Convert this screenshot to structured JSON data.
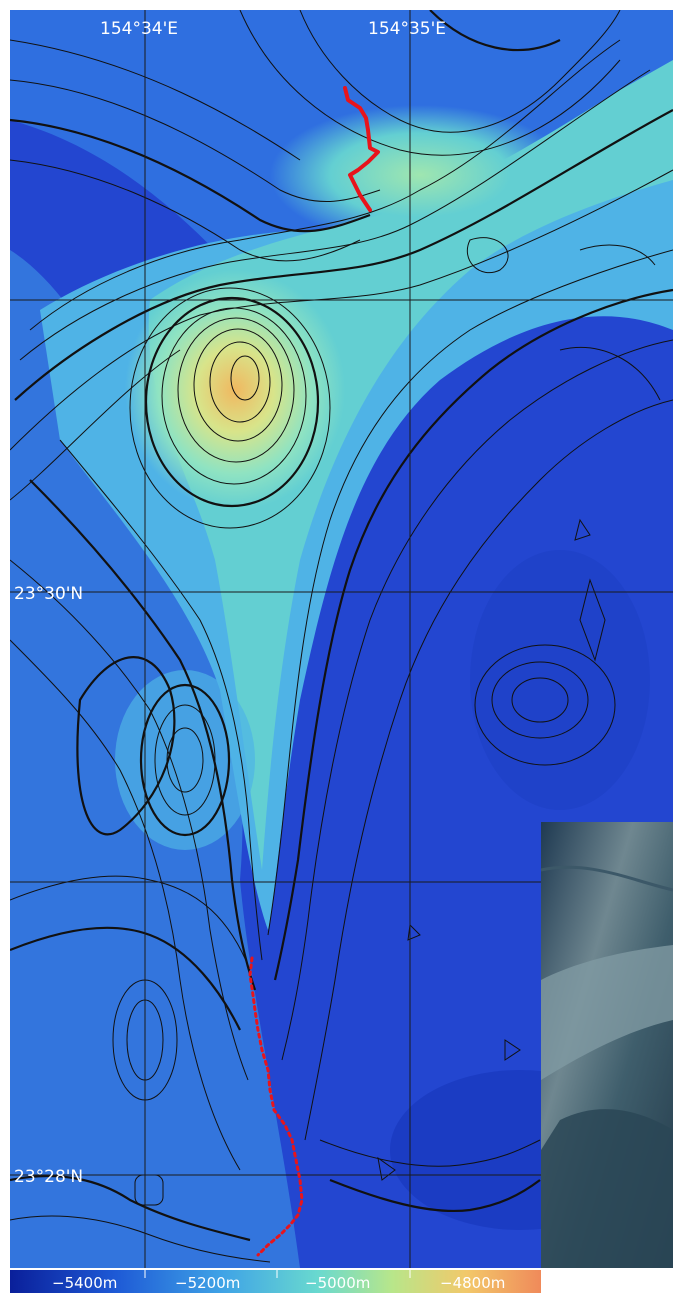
{
  "map": {
    "longitude_labels": [
      "154°34'E",
      "154°35'E"
    ],
    "latitude_labels": [
      "23°30'N",
      "23°28'N"
    ],
    "colorbar": {
      "tick_labels": [
        "−5400m",
        "−5200m",
        "−5000m",
        "−4800m"
      ],
      "colors": [
        "#0a1f9a",
        "#1e5ad6",
        "#3fa3e6",
        "#69d9cf",
        "#b8e68a",
        "#f2c86a",
        "#f08a5a"
      ]
    },
    "track_color": "#e8141b",
    "colors": {
      "deep": "#1a2fc4",
      "mid_deep": "#2f6fe0",
      "mid": "#4fb3e6",
      "shallow_mid": "#7fe0c8",
      "shallow": "#d8e48a",
      "peak": "#f0b860",
      "grid": "#1a1a1a",
      "inset_photo": "#2f4a58"
    },
    "features": {
      "grid_lines": true,
      "contour_lines": true,
      "dive_track": true,
      "seafloor_photo_inset": true
    }
  }
}
